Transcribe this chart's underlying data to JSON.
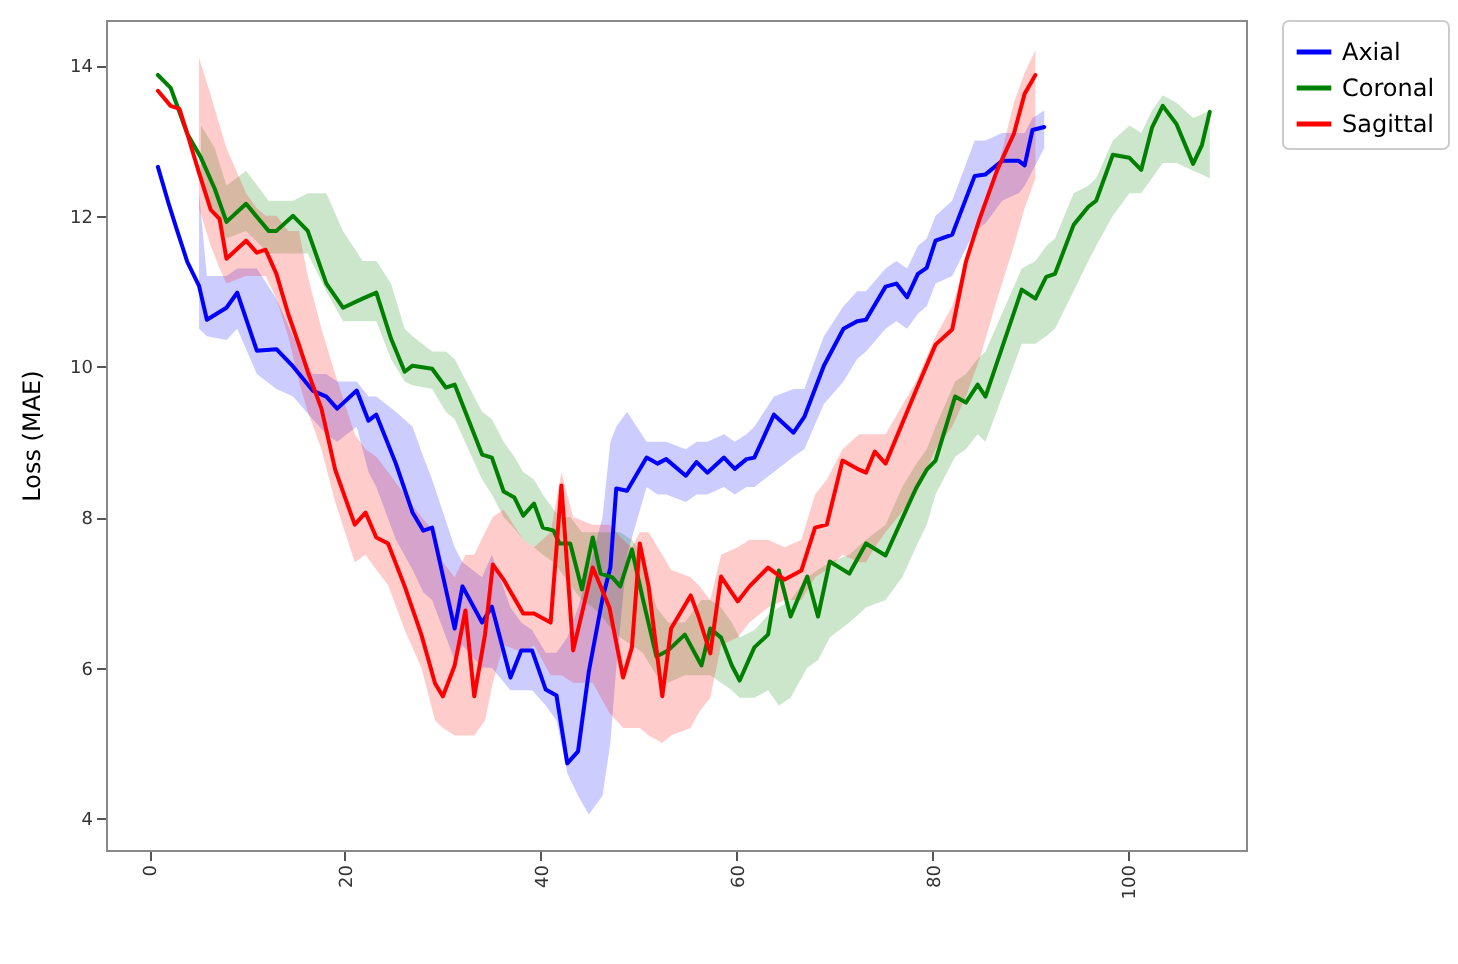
{
  "chart_data": {
    "type": "line",
    "ylabel": "Loss (MAE)",
    "xlim": [
      -4.4,
      112
    ],
    "xticks": [
      0,
      20,
      40,
      60,
      80,
      100
    ],
    "ylim": [
      3.58,
      14.6
    ],
    "yticks": [
      4,
      6,
      8,
      10,
      12,
      14
    ],
    "grid": false,
    "legend": "top right",
    "marker": "none",
    "line_style": "solid",
    "series": [
      {
        "name": "Axial",
        "color": "#0000ff",
        "x": [
          0.9,
          2.0,
          2.8,
          3.9,
          5.1,
          5.9,
          7.9,
          9.0,
          11.0,
          13.0,
          14.7,
          16.7,
          18.1,
          19.2,
          21.2,
          22.4,
          23.2,
          25.2,
          26.9,
          28.0,
          28.9,
          31.2,
          32.0,
          34.0,
          35.0,
          36.9,
          38.0,
          39.1,
          40.5,
          41.6,
          42.7,
          43.8,
          44.9,
          46.3,
          47.1,
          47.7,
          48.8,
          50.8,
          51.9,
          52.8,
          54.8,
          55.9,
          57.0,
          58.7,
          59.8,
          61.0,
          61.8,
          63.8,
          65.8,
          66.9,
          68.9,
          70.9,
          72.3,
          73.2,
          75.2,
          76.3,
          77.4,
          78.5,
          79.4,
          80.3,
          82.0,
          84.3,
          85.4,
          87.1,
          88.8,
          89.4,
          90.2,
          91.4
        ],
        "values": [
          12.65,
          12.16,
          11.83,
          11.39,
          11.07,
          10.62,
          10.78,
          10.98,
          10.21,
          10.23,
          10.0,
          9.68,
          9.6,
          9.44,
          9.68,
          9.28,
          9.36,
          8.71,
          8.06,
          7.82,
          7.86,
          6.52,
          7.08,
          6.6,
          6.81,
          5.87,
          6.23,
          6.23,
          5.71,
          5.63,
          4.73,
          4.89,
          5.95,
          6.92,
          7.33,
          8.38,
          8.35,
          8.79,
          8.71,
          8.77,
          8.55,
          8.73,
          8.59,
          8.79,
          8.64,
          8.77,
          8.79,
          9.36,
          9.12,
          9.33,
          10.01,
          10.5,
          10.6,
          10.62,
          11.06,
          11.1,
          10.92,
          11.23,
          11.31,
          11.67,
          11.75,
          12.53,
          12.55,
          12.73,
          12.73,
          12.67,
          13.14,
          13.18
        ],
        "lower": [
          null,
          null,
          null,
          null,
          10.5,
          10.4,
          10.35,
          10.5,
          9.9,
          9.7,
          9.6,
          9.3,
          9.1,
          9.0,
          9.2,
          8.6,
          8.4,
          7.7,
          7.3,
          7.0,
          6.9,
          6.1,
          6.3,
          6.0,
          6.0,
          5.7,
          5.7,
          5.7,
          5.5,
          5.3,
          4.6,
          4.3,
          4.05,
          4.3,
          5.0,
          6.0,
          7.5,
          8.4,
          8.3,
          8.3,
          8.2,
          8.3,
          8.3,
          8.4,
          8.3,
          8.4,
          8.4,
          8.6,
          8.8,
          8.9,
          9.5,
          9.8,
          10.1,
          10.2,
          10.5,
          10.6,
          10.5,
          10.7,
          10.8,
          11.1,
          11.2,
          11.8,
          11.9,
          12.2,
          12.3,
          12.4,
          12.6,
          12.9
        ],
        "upper": [
          null,
          null,
          null,
          null,
          12.3,
          11.2,
          11.2,
          11.3,
          11.3,
          10.9,
          10.4,
          9.9,
          9.9,
          9.8,
          9.8,
          9.6,
          9.6,
          9.4,
          9.2,
          8.8,
          8.5,
          7.6,
          7.4,
          7.2,
          7.5,
          6.8,
          6.6,
          6.5,
          6.2,
          6.2,
          6.4,
          6.8,
          7.3,
          8.0,
          9.0,
          9.2,
          9.4,
          9.0,
          9.0,
          9.0,
          8.9,
          9.0,
          9.0,
          9.1,
          9.0,
          9.1,
          9.2,
          9.6,
          9.7,
          9.7,
          10.4,
          10.8,
          11.0,
          11.0,
          11.3,
          11.4,
          11.3,
          11.6,
          11.7,
          12.0,
          12.2,
          13.0,
          13.0,
          13.1,
          13.1,
          13.1,
          13.3,
          13.4
        ]
      },
      {
        "name": "Coronal",
        "color": "#008000",
        "x": [
          0.9,
          2.2,
          3.9,
          5.3,
          6.7,
          7.9,
          9.9,
          12.2,
          13.0,
          14.7,
          16.2,
          18.1,
          19.8,
          21.8,
          23.2,
          24.7,
          26.1,
          26.9,
          28.9,
          30.3,
          31.2,
          34.0,
          35.0,
          36.2,
          37.3,
          38.2,
          39.3,
          40.2,
          41.3,
          41.9,
          43.0,
          44.2,
          45.3,
          46.1,
          47.3,
          48.1,
          49.3,
          50.4,
          51.8,
          53.0,
          54.7,
          56.4,
          57.3,
          58.4,
          59.5,
          60.3,
          61.8,
          63.2,
          64.3,
          65.5,
          67.2,
          68.3,
          69.5,
          71.5,
          73.2,
          75.2,
          76.9,
          78.3,
          79.4,
          80.3,
          82.3,
          83.4,
          84.6,
          85.4,
          89.1,
          90.5,
          91.6,
          92.5,
          94.4,
          95.9,
          96.7,
          98.4,
          100.1,
          101.3,
          102.4,
          103.5,
          104.9,
          106.6,
          107.5,
          108.3
        ],
        "values": [
          13.87,
          13.7,
          13.09,
          12.77,
          12.36,
          11.92,
          12.16,
          11.8,
          11.8,
          12.0,
          11.8,
          11.1,
          10.78,
          10.9,
          10.98,
          10.37,
          9.93,
          10.01,
          9.97,
          9.72,
          9.76,
          8.83,
          8.79,
          8.34,
          8.26,
          8.02,
          8.18,
          7.86,
          7.82,
          7.65,
          7.65,
          7.04,
          7.73,
          7.25,
          7.2,
          7.08,
          7.57,
          6.92,
          6.15,
          6.23,
          6.44,
          6.03,
          6.52,
          6.4,
          6.03,
          5.83,
          6.27,
          6.44,
          7.29,
          6.68,
          7.21,
          6.68,
          7.41,
          7.25,
          7.65,
          7.49,
          7.98,
          8.38,
          8.63,
          8.75,
          9.6,
          9.52,
          9.76,
          9.6,
          11.02,
          10.9,
          11.19,
          11.23,
          11.88,
          12.12,
          12.2,
          12.81,
          12.77,
          12.61,
          13.17,
          13.46,
          13.22,
          12.69,
          12.94,
          13.38
        ],
        "lower": [
          null,
          null,
          null,
          12.4,
          12.0,
          11.7,
          11.8,
          11.5,
          11.5,
          11.5,
          11.5,
          11.0,
          10.6,
          10.6,
          10.6,
          10.1,
          9.8,
          9.75,
          9.7,
          9.4,
          9.3,
          8.5,
          8.3,
          8.0,
          7.85,
          7.7,
          7.6,
          7.5,
          7.4,
          7.3,
          7.1,
          6.9,
          6.8,
          6.7,
          6.5,
          6.4,
          6.3,
          6.2,
          5.9,
          5.8,
          5.9,
          5.9,
          5.9,
          5.8,
          5.7,
          5.6,
          5.6,
          5.7,
          5.5,
          5.6,
          6.0,
          6.1,
          6.4,
          6.6,
          6.8,
          6.9,
          7.2,
          7.6,
          7.9,
          8.3,
          8.8,
          8.9,
          9.1,
          9.0,
          10.3,
          10.3,
          10.4,
          10.5,
          11.0,
          11.4,
          11.6,
          12.0,
          12.3,
          12.3,
          12.5,
          12.7,
          12.7,
          12.6,
          12.55,
          12.5
        ],
        "upper": [
          null,
          null,
          null,
          13.2,
          12.9,
          12.4,
          12.6,
          12.2,
          12.2,
          12.2,
          12.3,
          12.3,
          11.8,
          11.4,
          11.4,
          11.1,
          10.5,
          10.4,
          10.2,
          10.2,
          10.1,
          9.4,
          9.3,
          9.0,
          8.8,
          8.6,
          8.5,
          8.3,
          8.1,
          8.0,
          8.0,
          7.8,
          7.8,
          7.8,
          7.8,
          7.8,
          7.7,
          7.5,
          6.8,
          6.6,
          6.6,
          6.9,
          6.9,
          6.8,
          6.6,
          6.4,
          6.5,
          6.7,
          6.8,
          6.9,
          7.2,
          7.3,
          7.4,
          7.5,
          7.7,
          7.9,
          8.4,
          8.7,
          8.9,
          9.2,
          9.8,
          9.9,
          10.1,
          10.2,
          11.3,
          11.4,
          11.6,
          11.7,
          12.3,
          12.4,
          12.5,
          13.0,
          13.2,
          13.1,
          13.4,
          13.6,
          13.5,
          13.3,
          13.35,
          13.4
        ]
      },
      {
        "name": "Sagittal",
        "color": "#ff0000",
        "x": [
          0.9,
          2.2,
          3.1,
          3.9,
          5.1,
          6.3,
          7.2,
          7.9,
          9.9,
          11.0,
          11.9,
          13.0,
          14.2,
          15.3,
          16.2,
          17.6,
          19.0,
          21.0,
          22.1,
          23.2,
          24.4,
          26.1,
          27.8,
          29.2,
          30.0,
          31.2,
          32.3,
          33.2,
          34.3,
          35.1,
          36.2,
          38.2,
          39.3,
          41.0,
          42.1,
          43.3,
          45.3,
          47.0,
          48.4,
          49.3,
          50.1,
          51.0,
          52.4,
          53.3,
          55.3,
          56.1,
          57.3,
          58.4,
          60.1,
          61.3,
          63.2,
          64.9,
          66.6,
          68.0,
          69.2,
          70.8,
          72.5,
          73.2,
          74.1,
          75.2,
          78.3,
          80.3,
          82.0,
          83.4,
          84.8,
          86.6,
          88.3,
          89.4,
          90.5
        ],
        "values": [
          13.66,
          13.46,
          13.42,
          13.09,
          12.57,
          12.08,
          11.96,
          11.43,
          11.67,
          11.51,
          11.55,
          11.23,
          10.7,
          10.29,
          9.93,
          9.44,
          8.63,
          7.9,
          8.06,
          7.73,
          7.65,
          7.08,
          6.44,
          5.79,
          5.62,
          6.03,
          6.76,
          5.62,
          6.44,
          7.37,
          7.17,
          6.72,
          6.72,
          6.6,
          8.42,
          6.23,
          7.33,
          6.8,
          5.87,
          6.27,
          7.65,
          7.08,
          5.62,
          6.52,
          6.96,
          6.68,
          6.19,
          7.21,
          6.88,
          7.08,
          7.33,
          7.17,
          7.29,
          7.86,
          7.9,
          8.75,
          8.63,
          8.59,
          8.87,
          8.71,
          9.68,
          10.29,
          10.49,
          11.39,
          11.96,
          12.61,
          13.09,
          13.62,
          13.87
        ],
        "lower": [
          null,
          null,
          null,
          null,
          12.1,
          11.6,
          11.3,
          11.1,
          11.2,
          11.2,
          11.2,
          10.9,
          10.4,
          9.8,
          9.4,
          8.9,
          8.2,
          7.4,
          7.5,
          7.3,
          7.1,
          6.5,
          6.0,
          5.3,
          5.2,
          5.1,
          5.1,
          5.1,
          5.3,
          5.8,
          6.3,
          6.2,
          6.3,
          5.9,
          5.9,
          5.8,
          5.8,
          5.4,
          5.2,
          5.2,
          5.2,
          5.1,
          5.0,
          5.1,
          5.2,
          5.4,
          5.6,
          6.3,
          6.4,
          6.6,
          6.8,
          6.9,
          6.9,
          7.2,
          7.3,
          7.5,
          7.4,
          7.4,
          7.6,
          7.8,
          8.3,
          8.9,
          9.2,
          9.6,
          10.1,
          10.9,
          11.6,
          12.1,
          12.5
        ],
        "upper": [
          null,
          null,
          null,
          null,
          14.1,
          13.6,
          13.2,
          12.9,
          12.3,
          12.1,
          12.0,
          12.0,
          11.8,
          11.8,
          11.2,
          10.5,
          9.9,
          9.1,
          8.9,
          8.8,
          8.6,
          8.3,
          8.0,
          7.8,
          7.4,
          7.2,
          7.5,
          7.5,
          7.8,
          8.0,
          8.1,
          7.7,
          7.6,
          7.8,
          8.6,
          8.0,
          7.9,
          7.9,
          7.7,
          7.6,
          7.8,
          7.8,
          7.5,
          7.3,
          7.2,
          7.1,
          6.9,
          7.5,
          7.6,
          7.7,
          7.7,
          7.6,
          7.7,
          8.3,
          8.5,
          8.9,
          9.1,
          9.1,
          9.1,
          9.1,
          9.8,
          10.4,
          10.8,
          11.4,
          12.0,
          12.6,
          13.5,
          13.9,
          14.2
        ]
      }
    ]
  }
}
